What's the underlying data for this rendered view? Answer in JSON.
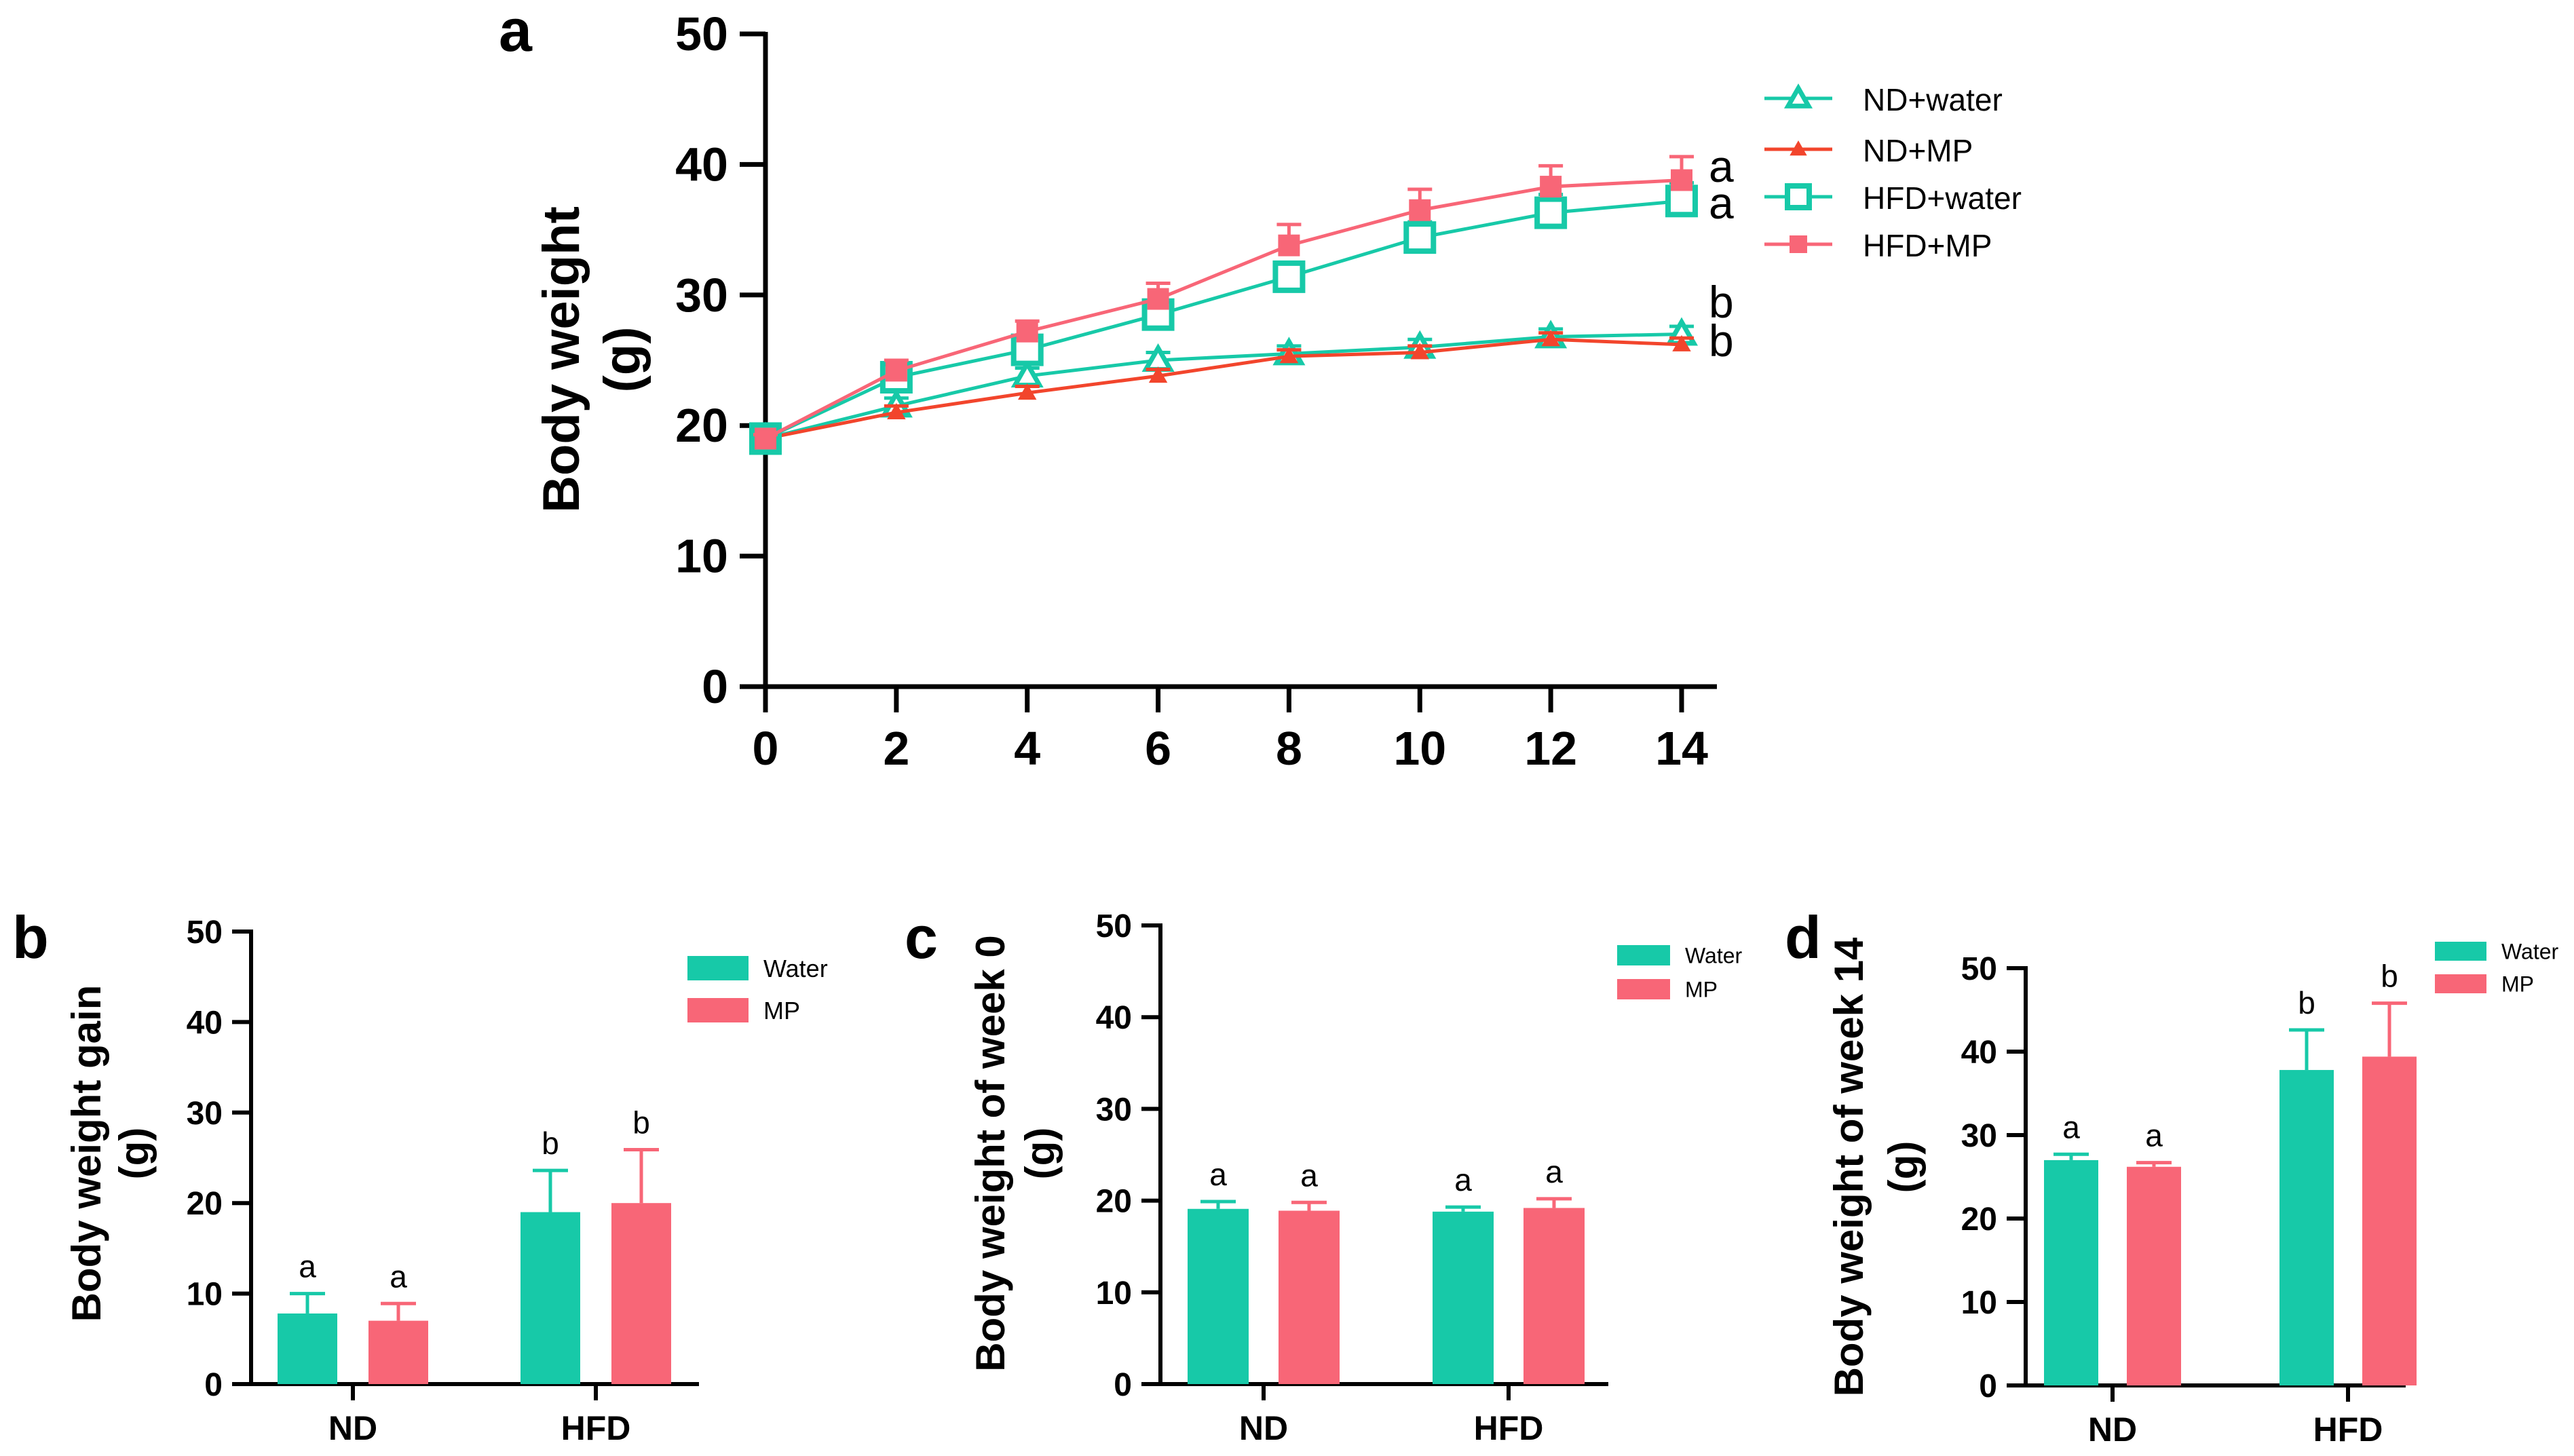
{
  "colors": {
    "teal": "#17C9A8",
    "red_line": "#F2452C",
    "pink": "#F86677",
    "axis": "#000000"
  },
  "chart_data": [
    {
      "panel": "a",
      "type": "line",
      "title": "",
      "xlabel": "",
      "ylabel": "Body weight",
      "ylabel_unit": "(g)",
      "x": [
        0,
        2,
        4,
        6,
        8,
        10,
        12,
        14
      ],
      "xticks": [
        "0",
        "2",
        "4",
        "6",
        "8",
        "10",
        "12",
        "14"
      ],
      "yticks": [
        "0",
        "10",
        "20",
        "30",
        "40",
        "50"
      ],
      "xlim": [
        0,
        14
      ],
      "ylim": [
        0,
        50
      ],
      "legend_position": "top-right",
      "series": [
        {
          "name": "ND+water",
          "marker": "triangle-open",
          "color": "#17C9A8",
          "values": [
            19,
            21.5,
            23.8,
            25,
            25.5,
            26,
            26.8,
            27
          ],
          "errors": [
            0.3,
            0.6,
            0.6,
            0.6,
            0.6,
            0.6,
            0.6,
            0.6
          ],
          "end_label": "b"
        },
        {
          "name": "ND+MP",
          "marker": "triangle-filled",
          "color": "#F2452C",
          "values": [
            19,
            21,
            22.5,
            23.8,
            25.3,
            25.6,
            26.6,
            26.2
          ],
          "errors": [
            0.3,
            0.5,
            0.5,
            0.5,
            0.5,
            0.5,
            0.5,
            0.5
          ],
          "end_label": "b"
        },
        {
          "name": "HFD+water",
          "marker": "square-open",
          "color": "#17C9A8",
          "values": [
            19,
            23.7,
            25.8,
            28.5,
            31.4,
            34.4,
            36.3,
            37.2
          ],
          "errors": [
            0.3,
            0.8,
            1.0,
            1.0,
            1.0,
            1.2,
            1.4,
            1.4
          ],
          "end_label": "a"
        },
        {
          "name": "HFD+MP",
          "marker": "square-filled",
          "color": "#F86677",
          "values": [
            19,
            24.2,
            27.2,
            29.7,
            33.8,
            36.5,
            38.3,
            38.8
          ],
          "errors": [
            0.3,
            0.8,
            0.8,
            1.2,
            1.6,
            1.6,
            1.6,
            1.8
          ],
          "end_label": "a"
        }
      ]
    },
    {
      "panel": "b",
      "type": "bar",
      "title": "",
      "xlabel": "",
      "ylabel": "Body weight gain",
      "ylabel_unit": "(g)",
      "categories": [
        "ND",
        "HFD"
      ],
      "yticks": [
        "0",
        "10",
        "20",
        "30",
        "40",
        "50"
      ],
      "ylim": [
        0,
        50
      ],
      "legend_position": "top-right",
      "series": [
        {
          "name": "Water",
          "color": "#17C9A8",
          "values": [
            7.8,
            19.0
          ],
          "errors": [
            2.2,
            4.6
          ],
          "labels": [
            "a",
            "b"
          ]
        },
        {
          "name": "MP",
          "color": "#F86677",
          "values": [
            7.0,
            20.0
          ],
          "errors": [
            1.9,
            5.9
          ],
          "labels": [
            "a",
            "b"
          ]
        }
      ]
    },
    {
      "panel": "c",
      "type": "bar",
      "title": "",
      "xlabel": "",
      "ylabel": "Body weight of week 0",
      "ylabel_unit": "(g)",
      "categories": [
        "ND",
        "HFD"
      ],
      "yticks": [
        "0",
        "10",
        "20",
        "30",
        "40",
        "50"
      ],
      "ylim": [
        0,
        50
      ],
      "legend_position": "top-right",
      "series": [
        {
          "name": "Water",
          "color": "#17C9A8",
          "values": [
            19.1,
            18.8
          ],
          "errors": [
            0.8,
            0.5
          ],
          "labels": [
            "a",
            "a"
          ]
        },
        {
          "name": "MP",
          "color": "#F86677",
          "values": [
            18.9,
            19.2
          ],
          "errors": [
            0.9,
            1.0
          ],
          "labels": [
            "a",
            "a"
          ]
        }
      ]
    },
    {
      "panel": "d",
      "type": "bar",
      "title": "",
      "xlabel": "",
      "ylabel": "Body weight of week 14",
      "ylabel_unit": "(g)",
      "categories": [
        "ND",
        "HFD"
      ],
      "yticks": [
        "0",
        "10",
        "20",
        "30",
        "40",
        "50"
      ],
      "ylim": [
        0,
        50
      ],
      "legend_position": "top-right",
      "series": [
        {
          "name": "Water",
          "color": "#17C9A8",
          "values": [
            27.0,
            37.8
          ],
          "errors": [
            0.7,
            4.8
          ],
          "labels": [
            "a",
            "b"
          ]
        },
        {
          "name": "MP",
          "color": "#F86677",
          "values": [
            26.2,
            39.4
          ],
          "errors": [
            0.5,
            6.4
          ],
          "labels": [
            "a",
            "b"
          ]
        }
      ]
    }
  ]
}
